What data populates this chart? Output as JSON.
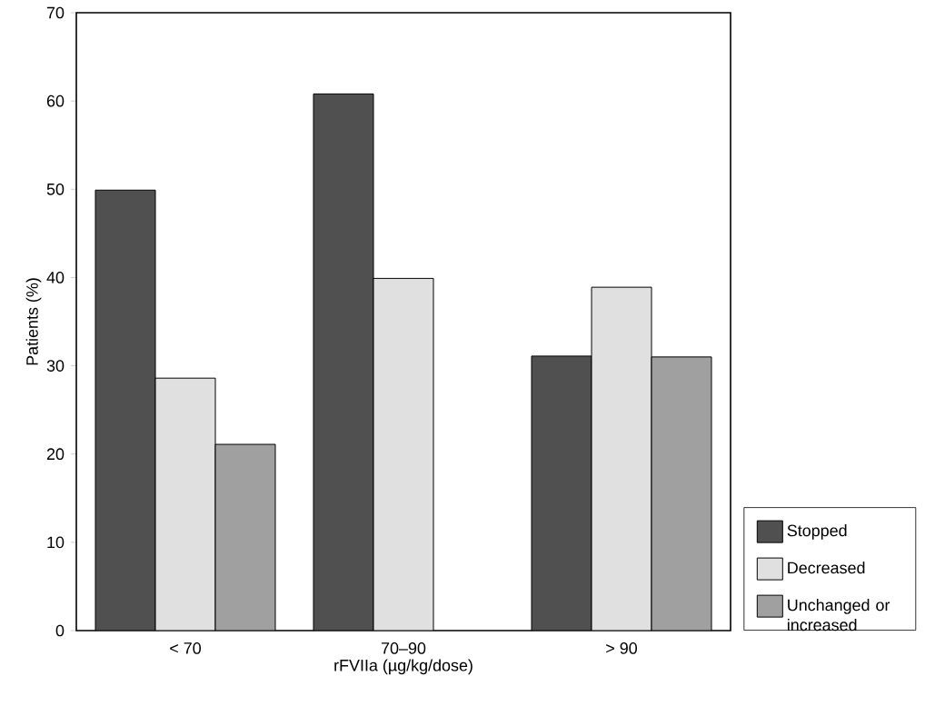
{
  "chart_data": {
    "type": "bar",
    "xlabel": "rFVIIa (µg/kg/dose)",
    "ylabel": "Patients (%)",
    "categories": [
      "< 70",
      "70–90",
      "> 90"
    ],
    "series": [
      {
        "name": "Stopped",
        "color": "#505050",
        "values": [
          49.9,
          60.8,
          31.1
        ]
      },
      {
        "name": "Decreased",
        "color": "#e0e0e0",
        "values": [
          28.6,
          39.9,
          38.9
        ]
      },
      {
        "name": "Unchanged or increased",
        "color": "#a0a0a0",
        "values": [
          21.1,
          null,
          31.0
        ]
      }
    ],
    "ylim": [
      0,
      70
    ],
    "yticks": [
      0,
      10,
      20,
      30,
      40,
      50,
      60,
      70
    ],
    "grid": false,
    "legend": "bottom right"
  }
}
